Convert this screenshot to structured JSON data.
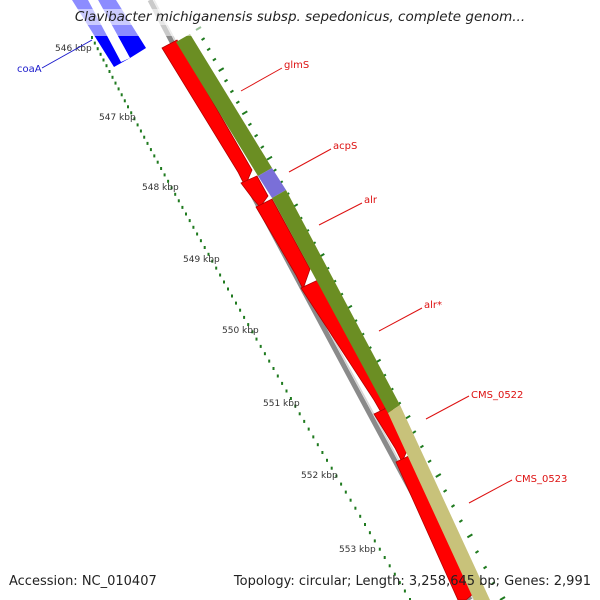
{
  "title": "Clavibacter michiganensis subsp. sepedonicus, complete genom...",
  "accession_label": "Accession: NC_010407",
  "summary": "Topology: circular; Length: 3,258,645 bp; Genes: 2,991",
  "ruler_ticks": [
    "546 kbp",
    "547 kbp",
    "548 kbp",
    "549 kbp",
    "550 kbp",
    "551 kbp",
    "552 kbp",
    "553 kbp"
  ],
  "genes": [
    {
      "name": "coaA",
      "color": "#1a1acc"
    },
    {
      "name": "glmS",
      "color": "#dd1111"
    },
    {
      "name": "acpS",
      "color": "#dd1111"
    },
    {
      "name": "alr",
      "color": "#dd1111"
    },
    {
      "name": "alr*",
      "color": "#dd1111"
    },
    {
      "name": "CMS_0522",
      "color": "#dd1111"
    },
    {
      "name": "CMS_0523",
      "color": "#dd1111"
    }
  ],
  "colors": {
    "cds": "#ff0000",
    "cds_outline": "#b20000",
    "gene_blue": "#0000ff",
    "gc_green": "#6b8e23",
    "gc_khaki": "#c8c27a",
    "gc_purple": "#7a6fd8",
    "backbone": "#8a8a8a",
    "tick_green": "#1f7a1f"
  }
}
